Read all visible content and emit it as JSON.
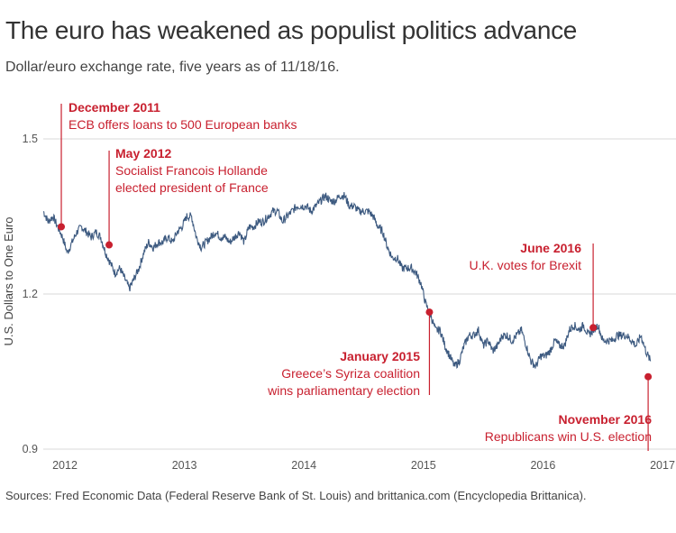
{
  "title": "The euro has weakened as populist politics advance",
  "subtitle": "Dollar/euro exchange rate, five years as of 11/18/16.",
  "source": "Sources: Fred Economic Data (Federal Reserve Bank of St. Louis) and brittanica.com (Encyclopedia Brittanica).",
  "colors": {
    "line": "#3d5a80",
    "accent": "#c8202f",
    "grid": "#d9d9d9"
  },
  "chart_data": {
    "type": "line",
    "title": "The euro has weakened as populist politics advance",
    "xlabel": "",
    "ylabel": "U.S. Dollars to One Euro",
    "ylim": [
      0.9,
      1.5
    ],
    "yticks": [
      0.9,
      1.2,
      1.5
    ],
    "ytick_labels": [
      "0.9",
      "1.2",
      "1.5"
    ],
    "xlim": [
      2011.82,
      2016.93
    ],
    "xticks": [
      2012,
      2013,
      2014,
      2015,
      2016,
      2017
    ],
    "xtick_labels": [
      "2012",
      "2013",
      "2014",
      "2015",
      "2016",
      "2017"
    ],
    "series": [
      {
        "name": "Dollar/euro exchange rate",
        "x": [
          2011.82,
          2011.86,
          2011.9,
          2011.94,
          2011.98,
          2012.02,
          2012.06,
          2012.1,
          2012.14,
          2012.18,
          2012.22,
          2012.26,
          2012.3,
          2012.34,
          2012.38,
          2012.42,
          2012.46,
          2012.5,
          2012.54,
          2012.58,
          2012.62,
          2012.66,
          2012.7,
          2012.74,
          2012.78,
          2012.82,
          2012.86,
          2012.9,
          2012.94,
          2012.98,
          2013.02,
          2013.06,
          2013.1,
          2013.14,
          2013.18,
          2013.22,
          2013.26,
          2013.3,
          2013.34,
          2013.38,
          2013.42,
          2013.46,
          2013.5,
          2013.54,
          2013.58,
          2013.62,
          2013.66,
          2013.7,
          2013.74,
          2013.78,
          2013.82,
          2013.86,
          2013.9,
          2013.94,
          2013.98,
          2014.02,
          2014.06,
          2014.1,
          2014.14,
          2014.18,
          2014.22,
          2014.26,
          2014.3,
          2014.34,
          2014.38,
          2014.42,
          2014.46,
          2014.5,
          2014.54,
          2014.58,
          2014.62,
          2014.66,
          2014.7,
          2014.74,
          2014.78,
          2014.82,
          2014.86,
          2014.9,
          2014.94,
          2014.98,
          2015.02,
          2015.06,
          2015.1,
          2015.14,
          2015.18,
          2015.22,
          2015.26,
          2015.3,
          2015.34,
          2015.38,
          2015.42,
          2015.46,
          2015.5,
          2015.54,
          2015.58,
          2015.62,
          2015.66,
          2015.7,
          2015.74,
          2015.78,
          2015.82,
          2015.86,
          2015.9,
          2015.94,
          2015.98,
          2016.02,
          2016.06,
          2016.1,
          2016.14,
          2016.18,
          2016.22,
          2016.26,
          2016.3,
          2016.34,
          2016.38,
          2016.42,
          2016.46,
          2016.5,
          2016.54,
          2016.58,
          2016.62,
          2016.66,
          2016.7,
          2016.74,
          2016.78,
          2016.82,
          2016.86,
          2016.9
        ],
        "values": [
          1.36,
          1.34,
          1.35,
          1.33,
          1.31,
          1.28,
          1.3,
          1.32,
          1.33,
          1.32,
          1.31,
          1.32,
          1.31,
          1.28,
          1.26,
          1.24,
          1.25,
          1.23,
          1.21,
          1.23,
          1.25,
          1.28,
          1.3,
          1.29,
          1.3,
          1.3,
          1.31,
          1.3,
          1.32,
          1.33,
          1.35,
          1.35,
          1.31,
          1.29,
          1.3,
          1.31,
          1.32,
          1.31,
          1.31,
          1.3,
          1.31,
          1.32,
          1.3,
          1.33,
          1.33,
          1.34,
          1.34,
          1.35,
          1.36,
          1.36,
          1.34,
          1.35,
          1.36,
          1.37,
          1.37,
          1.37,
          1.36,
          1.37,
          1.38,
          1.39,
          1.38,
          1.38,
          1.39,
          1.39,
          1.37,
          1.37,
          1.36,
          1.36,
          1.36,
          1.35,
          1.33,
          1.32,
          1.29,
          1.27,
          1.27,
          1.25,
          1.25,
          1.25,
          1.24,
          1.22,
          1.18,
          1.16,
          1.13,
          1.13,
          1.1,
          1.08,
          1.06,
          1.07,
          1.1,
          1.12,
          1.12,
          1.13,
          1.1,
          1.11,
          1.09,
          1.1,
          1.12,
          1.12,
          1.11,
          1.12,
          1.13,
          1.1,
          1.07,
          1.06,
          1.08,
          1.08,
          1.09,
          1.11,
          1.1,
          1.1,
          1.13,
          1.14,
          1.13,
          1.14,
          1.12,
          1.13,
          1.14,
          1.11,
          1.11,
          1.11,
          1.12,
          1.12,
          1.12,
          1.11,
          1.1,
          1.12,
          1.09,
          1.07
        ]
      }
    ],
    "annotations": [
      {
        "heading": "December 2011",
        "lines": [
          "ECB offers loans to 500 European banks"
        ],
        "x": 2011.97,
        "y": 1.33
      },
      {
        "heading": "May 2012",
        "lines": [
          "Socialist Francois Hollande",
          "elected president of France"
        ],
        "x": 2012.37,
        "y": 1.295
      },
      {
        "heading": "June 2016",
        "lines": [
          "U.K. votes for Brexit"
        ],
        "x": 2016.42,
        "y": 1.135
      },
      {
        "heading": "January 2015",
        "lines": [
          "Greece’s Syriza coalition",
          "wins parliamentary election"
        ],
        "x": 2015.05,
        "y": 1.165
      },
      {
        "heading": "November 2016",
        "lines": [
          "Republicans win U.S. election"
        ],
        "x": 2016.88,
        "y": 1.04
      }
    ]
  }
}
